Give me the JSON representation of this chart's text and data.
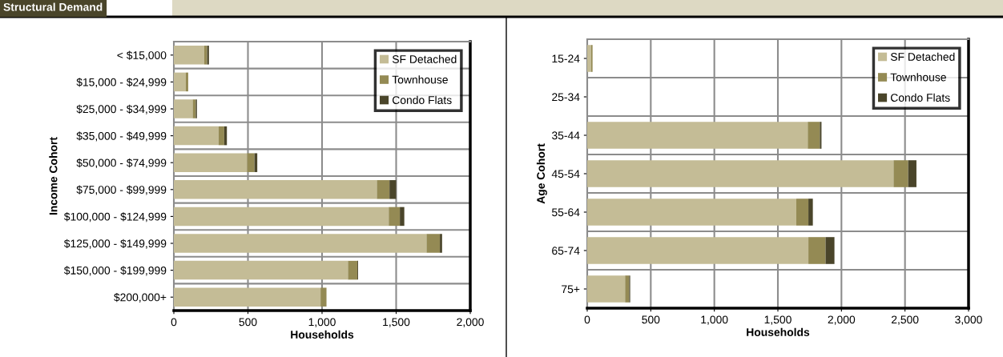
{
  "chart_data": [
    {
      "type": "bar",
      "title": "Structural Demand",
      "orientation": "horizontal",
      "stacked": true,
      "xlabel": "Households",
      "ylabel": "Income Cohort",
      "categories": [
        "< $15,000",
        "$15,000 - $24,999",
        "$25,000 - $34,999",
        "$35,000 - $49,999",
        "$50,000 - $74,999",
        "$75,000 - $99,999",
        "$100,000 - $124,999",
        "$125,000 - $149,999",
        "$150,000 - $199,999",
        "$200,000+"
      ],
      "series": [
        {
          "name": "SF Detached",
          "color": "#c4bc96",
          "values": [
            205,
            81,
            127,
            302,
            494,
            1370,
            1450,
            1705,
            1175,
            990
          ]
        },
        {
          "name": "Townhouse",
          "color": "#948a54",
          "values": [
            20,
            16,
            21,
            38,
            50,
            85,
            75,
            90,
            63,
            40
          ]
        },
        {
          "name": "Condo Flats",
          "color": "#4a452a",
          "values": [
            12,
            null,
            8,
            18,
            19,
            45,
            30,
            15,
            5,
            null
          ]
        }
      ],
      "xlim": [
        0,
        2000
      ],
      "xticks": [
        {
          "value": 0,
          "label": "0"
        },
        {
          "value": 500,
          "label": "500"
        },
        {
          "value": 1000,
          "label": "1,000"
        },
        {
          "value": 1500,
          "label": "1,500"
        },
        {
          "value": 2000,
          "label": "2,000"
        }
      ],
      "grid": true,
      "legend": "top right"
    },
    {
      "type": "bar",
      "orientation": "horizontal",
      "stacked": true,
      "xlabel": "Households",
      "ylabel": "Age Cohort",
      "categories": [
        "15-24",
        "25-34",
        "35-44",
        "45-54",
        "55-64",
        "65-74",
        "75+"
      ],
      "series": [
        {
          "name": "SF Detached",
          "color": "#c4bc96",
          "values": [
            30,
            0,
            1735,
            2410,
            1645,
            1740,
            298
          ]
        },
        {
          "name": "Townhouse",
          "color": "#948a54",
          "values": [
            12,
            0,
            95,
            115,
            95,
            135,
            32
          ]
        },
        {
          "name": "Condo Flats",
          "color": "#4a452a",
          "values": [
            null,
            0,
            13,
            65,
            35,
            70,
            8
          ]
        }
      ],
      "xlim": [
        0,
        3000
      ],
      "xticks": [
        {
          "value": 0,
          "label": "0"
        },
        {
          "value": 500,
          "label": "500"
        },
        {
          "value": 1000,
          "label": "1,000"
        },
        {
          "value": 1500,
          "label": "1,500"
        },
        {
          "value": 2000,
          "label": "2,000"
        },
        {
          "value": 2500,
          "label": "2,500"
        },
        {
          "value": 3000,
          "label": "3,000"
        }
      ],
      "grid": true,
      "legend": "top right"
    }
  ]
}
